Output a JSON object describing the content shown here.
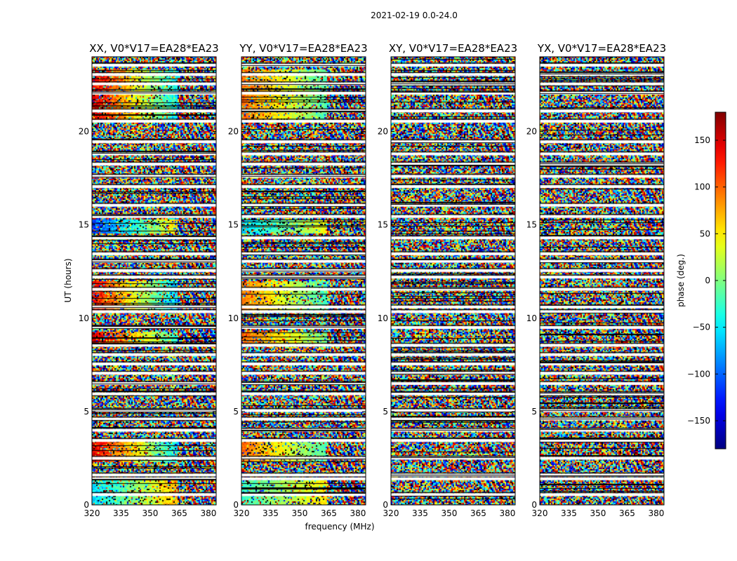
{
  "chart_data": {
    "type": "heatmap",
    "suptitle": "2021-02-19 0.0-24.0",
    "panels": [
      {
        "title": "XX, V0*V17=EA28*EA23",
        "pol": "XX"
      },
      {
        "title": "YY, V0*V17=EA28*EA23",
        "pol": "YY"
      },
      {
        "title": "XY, V0*V17=EA28*EA23",
        "pol": "XY"
      },
      {
        "title": "YX, V0*V17=EA28*EA23",
        "pol": "YX"
      }
    ],
    "xlabel": "frequency (MHz)",
    "ylabel": "UT (hours)",
    "xlim": [
      320,
      384
    ],
    "ylim": [
      0,
      24
    ],
    "xticks": [
      320,
      335,
      350,
      365,
      380
    ],
    "yticks": [
      0,
      5,
      10,
      15,
      20
    ],
    "colorbar": {
      "label": "phase (deg.)",
      "range": [
        -180,
        180
      ],
      "ticks": [
        150,
        100,
        50,
        0,
        -50,
        -100,
        -150
      ],
      "tick_labels": [
        "150",
        "100",
        "50",
        "0",
        "−50",
        "−100",
        "−150"
      ],
      "colormap": "jet"
    },
    "flagged_hours": [
      0.55,
      1.4,
      1.6,
      2.5,
      3.45,
      4.0,
      4.6,
      5.05,
      5.95,
      6.5,
      7.05,
      7.55,
      8.05,
      8.55,
      9.5,
      10.35,
      10.6,
      11.55,
      12.2,
      12.55,
      13.05,
      13.45,
      14.3,
      15.45,
      16.05,
      17.05,
      17.6,
      18.25,
      18.8,
      19.45,
      20.55,
      21.1,
      22.05,
      22.55,
      23.05,
      23.55
    ],
    "coherent_segments": [
      {
        "panels": [
          "XX",
          "YY"
        ],
        "start_hour": 0.0,
        "end_hour": 1.3,
        "phase_low_freq": -60,
        "phase_slope": 3.0
      },
      {
        "panels": [
          "XX",
          "YY"
        ],
        "start_hour": 2.3,
        "end_hour": 3.5,
        "phase_low_freq": 150,
        "phase_slope": -4.5
      },
      {
        "panels": [
          "XX",
          "YY"
        ],
        "start_hour": 8.5,
        "end_hour": 9.3,
        "phase_low_freq": 150,
        "phase_slope": -4.0
      },
      {
        "panels": [
          "XX",
          "YY"
        ],
        "start_hour": 10.4,
        "end_hour": 12.0,
        "phase_low_freq": 140,
        "phase_slope": -4.5
      },
      {
        "panels": [
          "XX",
          "YY"
        ],
        "start_hour": 14.5,
        "end_hour": 15.3,
        "phase_low_freq": -120,
        "phase_slope": 4.0
      },
      {
        "panels": [
          "XX",
          "YY"
        ],
        "start_hour": 20.5,
        "end_hour": 23.3,
        "phase_low_freq": 150,
        "phase_slope": -4.5
      }
    ]
  }
}
